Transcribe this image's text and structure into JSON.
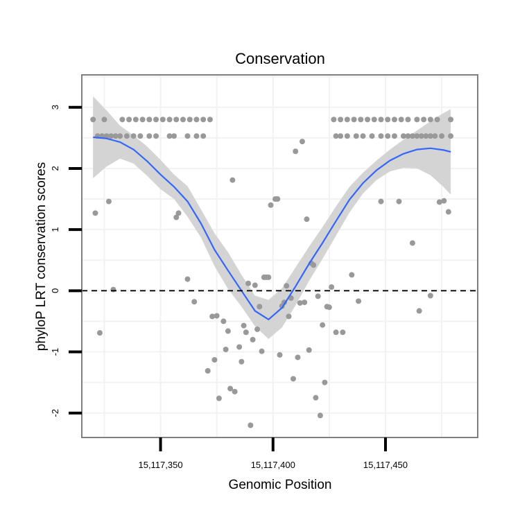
{
  "chart_data": {
    "type": "scatter",
    "title": "Conservation",
    "xlabel": "Genomic Position",
    "ylabel": "phyloP LRT conservation scores",
    "xlim": [
      15117315,
      15117491
    ],
    "ylim": [
      -2.4,
      3.53
    ],
    "x_ticks": [
      15117350,
      15117400,
      15117450
    ],
    "x_tick_labels": [
      "15,117,350",
      "15,117,400",
      "15,117,450"
    ],
    "y_ticks": [
      -2,
      -1,
      0,
      1,
      2,
      3
    ],
    "y_tick_labels": [
      "-2",
      "-1",
      "0",
      "1",
      "2",
      "3"
    ],
    "reference_line": {
      "y": 0,
      "style": "dashed"
    },
    "colors": {
      "points": "#999999",
      "smooth": "#3366FF",
      "ribbon": "#d4d4d4",
      "grid": "#f2f2f2",
      "frame": "#7f7f7f",
      "reference": "#000000"
    },
    "series": [
      {
        "name": "scores",
        "x": [
          15117320,
          15117325,
          15117333,
          15117336,
          15117339,
          15117342,
          15117345,
          15117348,
          15117351,
          15117354,
          15117357,
          15117360,
          15117363,
          15117366,
          15117369,
          15117372,
          15117322,
          15117324,
          15117326,
          15117328,
          15117330,
          15117332,
          15117335,
          15117338,
          15117341,
          15117345,
          15117348,
          15117354,
          15117356,
          15117362,
          15117366,
          15117369,
          15117427,
          15117430,
          15117433,
          15117436,
          15117439,
          15117442,
          15117445,
          15117448,
          15117451,
          15117454,
          15117457,
          15117460,
          15117464,
          15117467,
          15117470,
          15117473,
          15117479,
          15117428,
          15117430,
          15117433,
          15117437,
          15117440,
          15117444,
          15117448,
          15117451,
          15117454,
          15117458,
          15117460,
          15117462,
          15117464,
          15117466,
          15117468,
          15117470,
          15117472,
          15117475,
          15117479,
          15117321,
          15117323,
          15117327,
          15117329,
          15117357,
          15117358,
          15117362,
          15117365,
          15117371,
          15117373,
          15117374,
          15117375,
          15117376,
          15117378,
          15117379,
          15117380,
          15117381,
          15117382,
          15117383,
          15117385,
          15117386,
          15117387,
          15117388,
          15117389,
          15117390,
          15117391,
          15117392,
          15117393,
          15117394,
          15117395,
          15117396,
          15117397,
          15117398,
          15117399,
          15117401,
          15117402,
          15117403,
          15117404,
          15117405,
          15117406,
          15117407,
          15117408,
          15117409,
          15117410,
          15117411,
          15117412,
          15117413,
          15117414,
          15117415,
          15117416,
          15117417,
          15117418,
          15117419,
          15117420,
          15117421,
          15117422,
          15117423,
          15117424,
          15117425,
          15117426,
          15117428,
          15117431,
          15117435,
          15117438,
          15117448,
          15117456,
          15117462,
          15117465,
          15117470,
          15117474,
          15117476,
          15117478
        ],
        "y": [
          2.8,
          2.8,
          2.8,
          2.8,
          2.8,
          2.8,
          2.8,
          2.8,
          2.8,
          2.8,
          2.8,
          2.8,
          2.8,
          2.8,
          2.8,
          2.8,
          2.53,
          2.53,
          2.53,
          2.53,
          2.53,
          2.53,
          2.53,
          2.53,
          2.53,
          2.53,
          2.53,
          2.53,
          2.53,
          2.53,
          2.53,
          2.53,
          2.8,
          2.8,
          2.8,
          2.8,
          2.8,
          2.8,
          2.8,
          2.8,
          2.8,
          2.8,
          2.8,
          2.8,
          2.8,
          2.8,
          2.8,
          2.8,
          2.8,
          2.53,
          2.53,
          2.53,
          2.53,
          2.53,
          2.53,
          2.53,
          2.53,
          2.53,
          2.53,
          2.53,
          2.53,
          2.53,
          2.53,
          2.53,
          2.53,
          2.53,
          2.53,
          2.53,
          1.27,
          -0.69,
          1.46,
          0.02,
          1.2,
          1.27,
          0.19,
          -0.18,
          -1.31,
          -0.42,
          -1.13,
          -0.41,
          -1.76,
          -0.5,
          -0.96,
          -0.66,
          -1.6,
          1.81,
          -1.65,
          -0.92,
          -1.16,
          -0.57,
          -0.68,
          0.12,
          -2.2,
          -0.8,
          0.09,
          -0.63,
          -0.26,
          -0.99,
          0.22,
          0.22,
          0.22,
          1.4,
          1.5,
          1.5,
          -1.05,
          -0.25,
          -0.19,
          0.08,
          -0.42,
          -0.12,
          -1.44,
          2.28,
          -1.09,
          -0.2,
          2.44,
          -0.19,
          1.17,
          -0.97,
          0.45,
          0.42,
          -1.75,
          -0.09,
          -2.04,
          -0.56,
          -1.5,
          -0.26,
          -0.27,
          0.06,
          -0.68,
          -0.68,
          0.26,
          -0.17,
          1.46,
          1.46,
          0.78,
          -0.33,
          -0.08,
          1.45,
          1.47,
          1.29
        ]
      }
    ],
    "smooth": {
      "x": [
        15117320,
        15117326,
        15117332,
        15117338,
        15117344,
        15117350,
        15117356,
        15117362,
        15117368,
        15117374,
        15117380,
        15117386,
        15117392,
        15117398,
        15117404,
        15117410,
        15117416,
        15117422,
        15117428,
        15117434,
        15117440,
        15117446,
        15117452,
        15117458,
        15117464,
        15117470,
        15117476,
        15117479
      ],
      "y": [
        2.51,
        2.49,
        2.43,
        2.31,
        2.12,
        1.9,
        1.7,
        1.46,
        1.1,
        0.67,
        0.33,
        0.0,
        -0.33,
        -0.47,
        -0.28,
        0.07,
        0.44,
        0.78,
        1.14,
        1.49,
        1.76,
        1.97,
        2.13,
        2.24,
        2.31,
        2.33,
        2.3,
        2.27
      ],
      "upper": [
        3.18,
        2.95,
        2.7,
        2.54,
        2.36,
        2.14,
        1.9,
        1.71,
        1.33,
        0.94,
        0.63,
        0.26,
        -0.08,
        -0.15,
        0.04,
        0.38,
        0.72,
        1.04,
        1.38,
        1.7,
        1.93,
        2.13,
        2.31,
        2.47,
        2.62,
        2.77,
        2.91,
        2.97
      ],
      "lower": [
        1.84,
        2.03,
        2.16,
        2.08,
        1.88,
        1.66,
        1.5,
        1.21,
        0.87,
        0.4,
        0.03,
        -0.26,
        -0.58,
        -0.79,
        -0.6,
        -0.24,
        0.16,
        0.52,
        0.9,
        1.28,
        1.59,
        1.81,
        1.95,
        2.01,
        2.0,
        1.89,
        1.69,
        1.57
      ]
    }
  }
}
